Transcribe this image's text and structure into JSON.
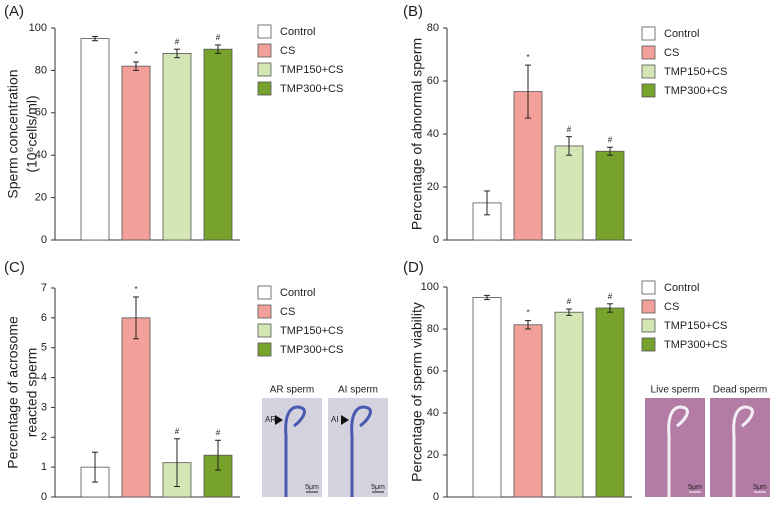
{
  "chart_data": [
    {
      "type": "bar",
      "panel_label": "(A)",
      "ylabel": [
        "Sperm concentration",
        "(10⁶cells/ml)"
      ],
      "ylim": [
        0,
        100
      ],
      "yticks": [
        0,
        20,
        40,
        60,
        80,
        100
      ],
      "series": [
        {
          "name": "Control",
          "color": "#ffffff",
          "values": [
            95
          ],
          "errors": [
            1
          ]
        },
        {
          "name": "CS",
          "color": "#f4a09a",
          "values": [
            82
          ],
          "errors": [
            2
          ],
          "annotation": "*"
        },
        {
          "name": "TMP150+CS",
          "color": "#d4e6b5",
          "values": [
            88
          ],
          "errors": [
            2
          ],
          "annotation": "#"
        },
        {
          "name": "TMP300+CS",
          "color": "#77a22b",
          "values": [
            90
          ],
          "errors": [
            2
          ],
          "annotation": "#"
        }
      ]
    },
    {
      "type": "bar",
      "panel_label": "(B)",
      "ylabel": [
        "Percentage of abnormal sperm"
      ],
      "ylim": [
        0,
        80
      ],
      "yticks": [
        0,
        20,
        40,
        60,
        80
      ],
      "series": [
        {
          "name": "Control",
          "color": "#ffffff",
          "values": [
            14
          ],
          "errors": [
            4.5
          ]
        },
        {
          "name": "CS",
          "color": "#f4a09a",
          "values": [
            56
          ],
          "errors": [
            10
          ],
          "annotation": "*"
        },
        {
          "name": "TMP150+CS",
          "color": "#d4e6b5",
          "values": [
            35.5
          ],
          "errors": [
            3.5
          ],
          "annotation": "#"
        },
        {
          "name": "TMP300+CS",
          "color": "#77a22b",
          "values": [
            33.5
          ],
          "errors": [
            1.5
          ],
          "annotation": "#"
        }
      ]
    },
    {
      "type": "bar",
      "panel_label": "(C)",
      "ylabel": [
        "Percentage of acrosome",
        "reacted sperm"
      ],
      "ylim": [
        0,
        7
      ],
      "yticks": [
        0,
        1,
        2,
        3,
        4,
        5,
        6,
        7
      ],
      "series": [
        {
          "name": "Control",
          "color": "#ffffff",
          "values": [
            1
          ],
          "errors": [
            0.5
          ]
        },
        {
          "name": "CS",
          "color": "#f4a09a",
          "values": [
            6
          ],
          "errors": [
            0.7
          ],
          "annotation": "*"
        },
        {
          "name": "TMP150+CS",
          "color": "#d4e6b5",
          "values": [
            1.15
          ],
          "errors": [
            0.8
          ],
          "annotation": "#"
        },
        {
          "name": "TMP300+CS",
          "color": "#77a22b",
          "values": [
            1.4
          ],
          "errors": [
            0.5
          ],
          "annotation": "#"
        }
      ],
      "images": [
        {
          "caption": "AR sperm",
          "marker": "AR"
        },
        {
          "caption": "AI sperm",
          "marker": "AI"
        }
      ],
      "scale_bar": "5μm"
    },
    {
      "type": "bar",
      "panel_label": "(D)",
      "ylabel": [
        "Percentage of sperm viability"
      ],
      "ylim": [
        0,
        100
      ],
      "yticks": [
        0,
        20,
        40,
        60,
        80,
        100
      ],
      "series": [
        {
          "name": "Control",
          "color": "#ffffff",
          "values": [
            95
          ],
          "errors": [
            1
          ]
        },
        {
          "name": "CS",
          "color": "#f4a09a",
          "values": [
            82
          ],
          "errors": [
            2
          ],
          "annotation": "*"
        },
        {
          "name": "TMP150+CS",
          "color": "#d4e6b5",
          "values": [
            88
          ],
          "errors": [
            1.5
          ],
          "annotation": "#"
        },
        {
          "name": "TMP300+CS",
          "color": "#77a22b",
          "values": [
            90
          ],
          "errors": [
            2
          ],
          "annotation": "#"
        }
      ],
      "images": [
        {
          "caption": "Live sperm"
        },
        {
          "caption": "Dead sperm"
        }
      ],
      "scale_bar": "5μm"
    }
  ]
}
